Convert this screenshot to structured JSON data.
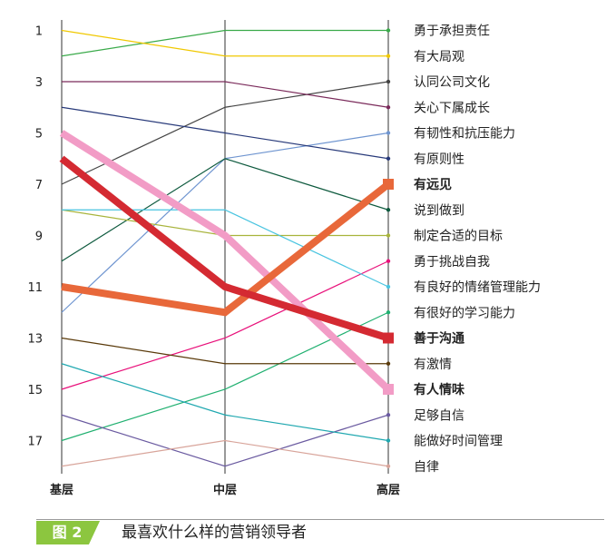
{
  "chart_data": {
    "type": "line",
    "categories": [
      "基层",
      "中层",
      "高层"
    ],
    "y_tick_labels": [
      "1",
      "3",
      "5",
      "7",
      "9",
      "11",
      "13",
      "15",
      "17"
    ],
    "y_tick_values": [
      1,
      3,
      5,
      7,
      9,
      11,
      13,
      15,
      17
    ],
    "ylim": [
      1,
      18
    ],
    "y_inverted": true,
    "grid": false,
    "legend": "right-end-labels",
    "series": [
      {
        "name": "勇于承担责任",
        "values": [
          2,
          1,
          1
        ],
        "color": "#3aaa4a",
        "emphasis": false
      },
      {
        "name": "有大局观",
        "values": [
          1,
          2,
          2
        ],
        "color": "#f0c800",
        "emphasis": false
      },
      {
        "name": "认同公司文化",
        "values": [
          7,
          4,
          3
        ],
        "color": "#444444",
        "emphasis": false
      },
      {
        "name": "关心下属成长",
        "values": [
          3,
          3,
          4
        ],
        "color": "#7a2a5a",
        "emphasis": false
      },
      {
        "name": "有韧性和抗压能力",
        "values": [
          12,
          6,
          5
        ],
        "color": "#6f95d0",
        "emphasis": false
      },
      {
        "name": "有原则性",
        "values": [
          4,
          5,
          6
        ],
        "color": "#283a7a",
        "emphasis": false
      },
      {
        "name": "有远见",
        "values": [
          11,
          12,
          7
        ],
        "color": "#e8683a",
        "emphasis": true
      },
      {
        "name": "说到做到",
        "values": [
          10,
          6,
          8
        ],
        "color": "#0e5a3e",
        "emphasis": false
      },
      {
        "name": "制定合适的目标",
        "values": [
          8,
          9,
          9
        ],
        "color": "#a8b43c",
        "emphasis": false
      },
      {
        "name": "勇于挑战自我",
        "values": [
          15,
          13,
          10
        ],
        "color": "#e8107a",
        "emphasis": false
      },
      {
        "name": "有良好的情绪管理能力",
        "values": [
          8,
          8,
          11
        ],
        "color": "#48c4e0",
        "emphasis": false
      },
      {
        "name": "有很好的学习能力",
        "values": [
          17,
          15,
          12
        ],
        "color": "#20b070",
        "emphasis": false
      },
      {
        "name": "善于沟通",
        "values": [
          6,
          11,
          13
        ],
        "color": "#d42a32",
        "emphasis": true
      },
      {
        "name": "有激情",
        "values": [
          13,
          14,
          14
        ],
        "color": "#5a3a0a",
        "emphasis": false
      },
      {
        "name": "有人情味",
        "values": [
          5,
          9,
          15
        ],
        "color": "#f29cc6",
        "emphasis": true
      },
      {
        "name": "足够自信",
        "values": [
          16,
          18,
          16
        ],
        "color": "#6a5aa0",
        "emphasis": false
      },
      {
        "name": "能做好时间管理",
        "values": [
          14,
          16,
          17
        ],
        "color": "#20a8b0",
        "emphasis": false
      },
      {
        "name": "自律",
        "values": [
          18,
          17,
          18
        ],
        "color": "#d8a49a",
        "emphasis": false
      }
    ]
  },
  "figure": {
    "label": "图 2",
    "caption": "最喜欢什么样的营销领导者",
    "label_color": "#8cc63f"
  }
}
